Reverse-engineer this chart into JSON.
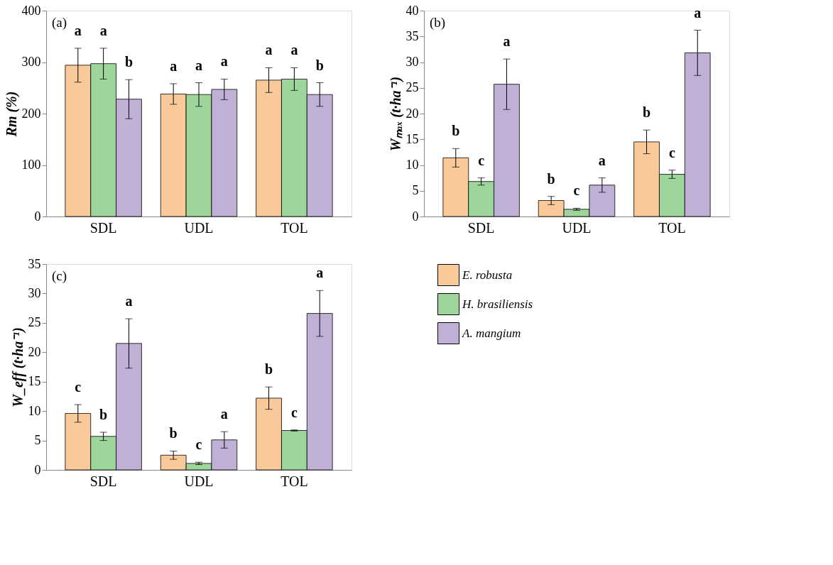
{
  "chart_data": [
    {
      "type": "bar",
      "categories": [
        "SDL",
        "UDL",
        "TOL"
      ],
      "ylabel": "Rm (%)",
      "ylim": [
        0,
        400
      ],
      "yticks": [
        0,
        100,
        200,
        300,
        400
      ],
      "grid": false,
      "legend": false,
      "annotations": [
        "(a)"
      ],
      "series": [
        {
          "name": "E. robusta",
          "color": "#f9c99a",
          "values": [
            294,
            238,
            265
          ],
          "errors": [
            33,
            20,
            24
          ],
          "value_labels": [
            "a",
            "a",
            "a"
          ]
        },
        {
          "name": "H. brasiliensis",
          "color": "#9dd59a",
          "values": [
            297,
            237,
            267
          ],
          "errors": [
            30,
            23,
            22
          ],
          "value_labels": [
            "a",
            "a",
            "a"
          ]
        },
        {
          "name": "A. mangium",
          "color": "#c0b0d6",
          "values": [
            228,
            247,
            237
          ],
          "errors": [
            38,
            20,
            23
          ],
          "value_labels": [
            "b",
            "a",
            "b"
          ]
        }
      ]
    },
    {
      "type": "bar",
      "categories": [
        "SDL",
        "UDL",
        "TOL"
      ],
      "ylabel": "Wₘₐₓ (t·ha⁻¹)",
      "ylim": [
        0,
        40
      ],
      "yticks": [
        0,
        5,
        10,
        15,
        20,
        25,
        30,
        35,
        40
      ],
      "grid": false,
      "legend": false,
      "annotations": [
        "(b)"
      ],
      "series": [
        {
          "name": "E. robusta",
          "color": "#f9c99a",
          "values": [
            11.4,
            3.1,
            14.5
          ],
          "errors": [
            1.8,
            0.8,
            2.3
          ],
          "value_labels": [
            "b",
            "b",
            "b"
          ]
        },
        {
          "name": "H. brasiliensis",
          "color": "#9dd59a",
          "values": [
            6.8,
            1.4,
            8.2
          ],
          "errors": [
            0.7,
            0.2,
            0.8
          ],
          "value_labels": [
            "c",
            "c",
            "c"
          ]
        },
        {
          "name": "A. mangium",
          "color": "#c0b0d6",
          "values": [
            25.7,
            6.1,
            31.8
          ],
          "errors": [
            4.9,
            1.4,
            4.4
          ],
          "value_labels": [
            "a",
            "a",
            "a"
          ]
        }
      ]
    },
    {
      "type": "bar",
      "categories": [
        "SDL",
        "UDL",
        "TOL"
      ],
      "ylabel": "W_eff (t·ha⁻¹)",
      "ylim": [
        0,
        35
      ],
      "yticks": [
        0,
        5,
        10,
        15,
        20,
        25,
        30,
        35
      ],
      "grid": false,
      "legend": "right",
      "annotations": [
        "(c)"
      ],
      "series": [
        {
          "name": "E. robusta",
          "color": "#f9c99a",
          "values": [
            9.6,
            2.5,
            12.2
          ],
          "errors": [
            1.5,
            0.7,
            1.9
          ],
          "value_labels": [
            "c",
            "b",
            "b"
          ]
        },
        {
          "name": "H. brasiliensis",
          "color": "#9dd59a",
          "values": [
            5.7,
            1.1,
            6.7
          ],
          "errors": [
            0.7,
            0.2,
            0.1
          ],
          "value_labels": [
            "b",
            "c",
            "c"
          ]
        },
        {
          "name": "A. mangium",
          "color": "#c0b0d6",
          "values": [
            21.5,
            5.1,
            26.6
          ],
          "errors": [
            4.2,
            1.4,
            3.9
          ],
          "value_labels": [
            "a",
            "a",
            "a"
          ]
        }
      ]
    }
  ]
}
